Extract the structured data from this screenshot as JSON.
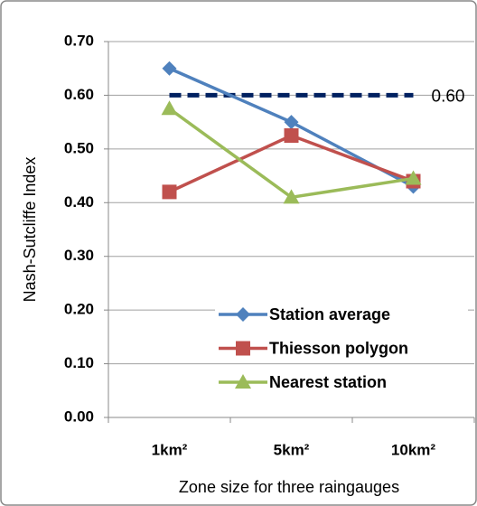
{
  "chart_data": {
    "type": "line",
    "x_label": "Zone size for three raingauges",
    "y_label": "Nash-Sutcliffe Index",
    "categories": [
      "1km²",
      "5km²",
      "10km²"
    ],
    "series": [
      {
        "name": "Station average",
        "color": "#4f81bd",
        "marker": "diamond",
        "values": [
          0.65,
          0.55,
          0.43
        ]
      },
      {
        "name": "Thiesson polygon",
        "color": "#c0504d",
        "marker": "square",
        "values": [
          0.42,
          0.525,
          0.44
        ]
      },
      {
        "name": "Nearest station",
        "color": "#9bbb59",
        "marker": "triangle",
        "values": [
          0.575,
          0.41,
          0.445
        ]
      }
    ],
    "reference_line": {
      "value": 0.6,
      "label": "0.60",
      "color": "#002060"
    },
    "ylim": [
      0,
      0.7
    ],
    "yticks": [
      {
        "value": 0,
        "label": "0.00"
      },
      {
        "value": 0.1,
        "label": "0.10"
      },
      {
        "value": 0.2,
        "label": "0.20"
      },
      {
        "value": 0.3,
        "label": "0.30"
      },
      {
        "value": 0.4,
        "label": "0.40"
      },
      {
        "value": 0.5,
        "label": "0.50"
      },
      {
        "value": 0.6,
        "label": "0.60"
      },
      {
        "value": 0.7,
        "label": "0.70"
      }
    ],
    "grid": true
  }
}
